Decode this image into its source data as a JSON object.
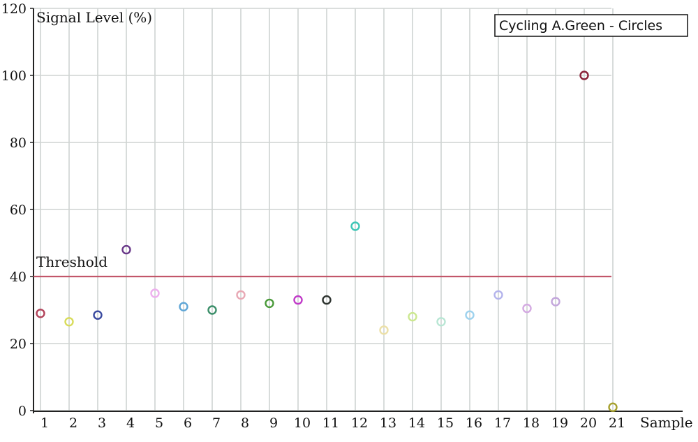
{
  "chart_data": {
    "type": "scatter",
    "title": "",
    "xlabel": "Sample",
    "ylabel": "Signal Level (%)",
    "legend_label": "Cycling A.Green - Circles",
    "legend_position": "top-right",
    "grid": true,
    "xlim": [
      1,
      21
    ],
    "ylim": [
      0,
      120
    ],
    "x_ticks": [
      "1",
      "2",
      "3",
      "4",
      "5",
      "6",
      "7",
      "8",
      "9",
      "10",
      "11",
      "12",
      "13",
      "14",
      "15",
      "16",
      "17",
      "18",
      "19",
      "20",
      "21"
    ],
    "y_ticks": [
      "0",
      "20",
      "40",
      "60",
      "80",
      "100",
      "120"
    ],
    "threshold": {
      "label": "Threshold",
      "value": 40,
      "color": "#c2566a"
    },
    "points": [
      {
        "x": 1,
        "y": 29,
        "color": "#b2435a"
      },
      {
        "x": 2,
        "y": 26.5,
        "color": "#d8dc5a"
      },
      {
        "x": 3,
        "y": 28.5,
        "color": "#3a4aa0"
      },
      {
        "x": 4,
        "y": 48,
        "color": "#6a3a8a"
      },
      {
        "x": 5,
        "y": 35,
        "color": "#eeb0ee"
      },
      {
        "x": 6,
        "y": 31,
        "color": "#5fa6d6"
      },
      {
        "x": 7,
        "y": 30,
        "color": "#3c8f6a"
      },
      {
        "x": 8,
        "y": 34.5,
        "color": "#e8a8b4"
      },
      {
        "x": 9,
        "y": 32,
        "color": "#4a9a3a"
      },
      {
        "x": 10,
        "y": 33,
        "color": "#c03ac8"
      },
      {
        "x": 11,
        "y": 33,
        "color": "#2e3430"
      },
      {
        "x": 12,
        "y": 55,
        "color": "#3fc6b6"
      },
      {
        "x": 13,
        "y": 24,
        "color": "#ece0a8"
      },
      {
        "x": 14,
        "y": 28,
        "color": "#cce890"
      },
      {
        "x": 15,
        "y": 26.5,
        "color": "#b8e6d4"
      },
      {
        "x": 16,
        "y": 28.5,
        "color": "#9ed2ee"
      },
      {
        "x": 17,
        "y": 34.5,
        "color": "#b4b4ec"
      },
      {
        "x": 18,
        "y": 30.5,
        "color": "#d4aae2"
      },
      {
        "x": 19,
        "y": 32.5,
        "color": "#c4a8dc"
      },
      {
        "x": 20,
        "y": 100,
        "color": "#8a2238"
      },
      {
        "x": 21,
        "y": 1,
        "color": "#a6a02e"
      }
    ]
  }
}
